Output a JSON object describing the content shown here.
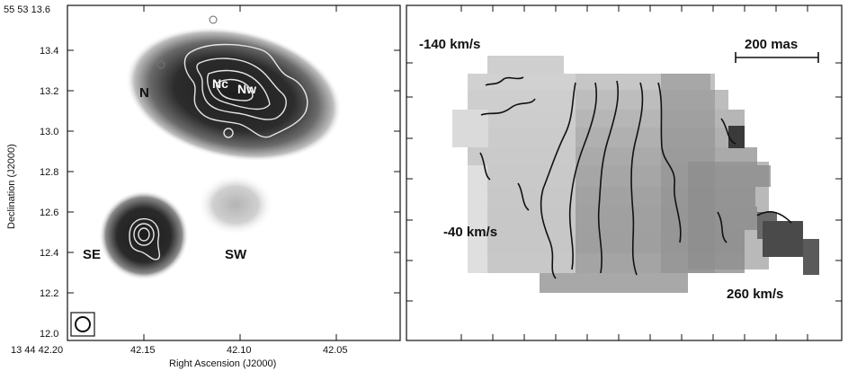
{
  "left_panel": {
    "top_left_label": "55 53 13.6",
    "bottom_left_label": "13 44 42.20",
    "xlabel": "Right Ascension (J2000)",
    "ylabel": "Declination (J2000)",
    "y_ticks": [
      "13.4",
      "13.2",
      "13.0",
      "12.8",
      "12.6",
      "12.4",
      "12.2",
      "12.0"
    ],
    "x_ticks": [
      "42.15",
      "42.10",
      "42.05"
    ],
    "regions": {
      "n": "N",
      "nc": "Nc",
      "nw": "Nw",
      "se": "SE",
      "sw": "SW"
    }
  },
  "right_panel": {
    "velocity_top": "-140 km/s",
    "velocity_mid": "-40 km/s",
    "velocity_bottom": "260 km/s",
    "scale_bar_label": "200 mas"
  },
  "colors": {
    "background": "#ffffff",
    "frame": "#111111",
    "emission_dark": "#2b2b2b",
    "contour": "#e6e6e6"
  }
}
